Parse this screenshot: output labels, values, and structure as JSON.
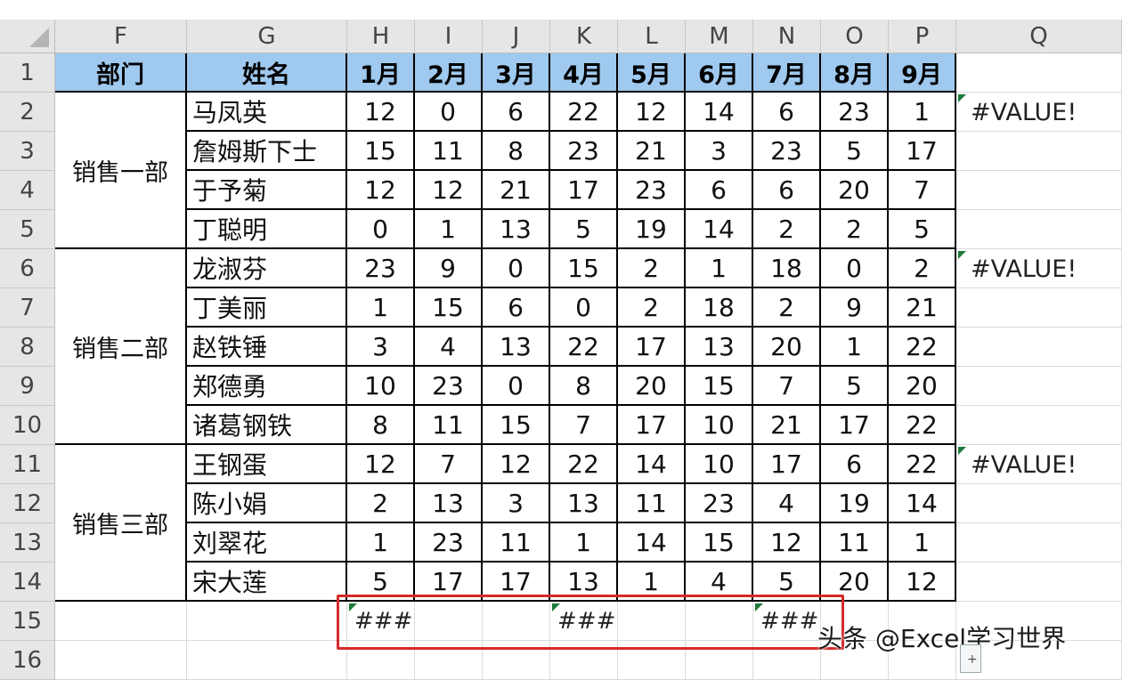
{
  "columns": [
    "F",
    "G",
    "H",
    "I",
    "J",
    "K",
    "L",
    "M",
    "N",
    "O",
    "P",
    "Q"
  ],
  "rows": [
    "1",
    "2",
    "3",
    "4",
    "5",
    "6",
    "7",
    "8",
    "9",
    "10",
    "11",
    "12",
    "13",
    "14",
    "15",
    "16"
  ],
  "table": {
    "header": [
      "部门",
      "姓名",
      "1月",
      "2月",
      "3月",
      "4月",
      "5月",
      "6月",
      "7月",
      "8月",
      "9月"
    ],
    "departments": [
      "销售一部",
      "销售二部",
      "销售三部"
    ],
    "data": [
      [
        "马凤英",
        "12",
        "0",
        "6",
        "22",
        "12",
        "14",
        "6",
        "23",
        "1"
      ],
      [
        "詹姆斯下士",
        "15",
        "11",
        "8",
        "23",
        "21",
        "3",
        "23",
        "5",
        "17"
      ],
      [
        "于予菊",
        "12",
        "12",
        "21",
        "17",
        "23",
        "6",
        "6",
        "20",
        "7"
      ],
      [
        "丁聪明",
        "0",
        "1",
        "13",
        "5",
        "19",
        "14",
        "2",
        "2",
        "5"
      ],
      [
        "龙淑芬",
        "23",
        "9",
        "0",
        "15",
        "2",
        "1",
        "18",
        "0",
        "2"
      ],
      [
        "丁美丽",
        "1",
        "15",
        "6",
        "0",
        "2",
        "18",
        "2",
        "9",
        "21"
      ],
      [
        "赵铁锤",
        "3",
        "4",
        "13",
        "22",
        "17",
        "13",
        "20",
        "1",
        "22"
      ],
      [
        "郑德勇",
        "10",
        "23",
        "0",
        "8",
        "20",
        "15",
        "7",
        "5",
        "20"
      ],
      [
        "诸葛钢铁",
        "8",
        "11",
        "15",
        "7",
        "17",
        "10",
        "21",
        "17",
        "22"
      ],
      [
        "王钢蛋",
        "12",
        "7",
        "12",
        "22",
        "14",
        "10",
        "17",
        "6",
        "22"
      ],
      [
        "陈小娟",
        "2",
        "13",
        "3",
        "13",
        "11",
        "23",
        "4",
        "19",
        "14"
      ],
      [
        "刘翠花",
        "1",
        "23",
        "11",
        "1",
        "14",
        "15",
        "12",
        "11",
        "1"
      ],
      [
        "宋大莲",
        "5",
        "17",
        "17",
        "13",
        "1",
        "4",
        "5",
        "20",
        "12"
      ]
    ]
  },
  "q_values": [
    "#VALUE!",
    "#VALUE!",
    "#VALUE!"
  ],
  "row15_values": [
    "###",
    "###",
    "###"
  ],
  "watermark": "头条 @Excel学习世界",
  "colors": {
    "header_fill": "#9fc9ee",
    "selection_border": "#d62a2a",
    "error_triangle": "#1f7a3a"
  }
}
